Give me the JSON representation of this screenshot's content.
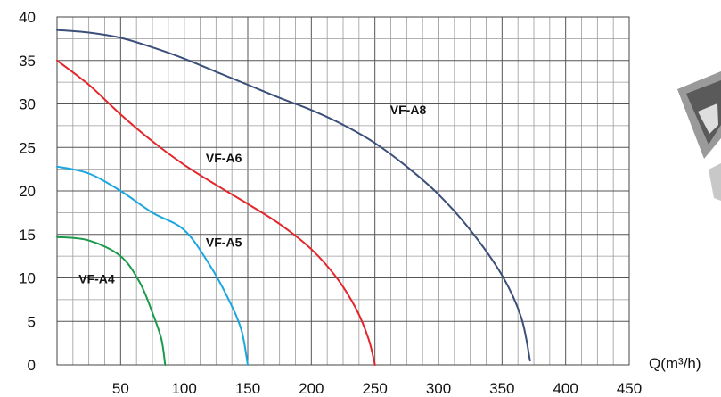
{
  "chart_data": {
    "type": "line",
    "title": "",
    "xlabel": "Q(m³/h)",
    "ylabel": "",
    "xlim": [
      0,
      450
    ],
    "ylim": [
      0,
      40
    ],
    "x_ticks": [
      "50",
      "100",
      "150",
      "200",
      "250",
      "300",
      "350",
      "400",
      "450"
    ],
    "y_ticks": [
      "0",
      "5",
      "10",
      "15",
      "20",
      "25",
      "30",
      "35",
      "40"
    ],
    "grid": true,
    "series": [
      {
        "name": "VF-A8",
        "color": "#3b4f7a",
        "label_at": [
          262,
          28.8
        ],
        "x": [
          0,
          25,
          50,
          75,
          100,
          125,
          150,
          175,
          200,
          225,
          250,
          275,
          300,
          325,
          350,
          365,
          372
        ],
        "y": [
          38.5,
          38.2,
          37.6,
          36.5,
          35.2,
          33.7,
          32.2,
          30.7,
          29.3,
          27.6,
          25.5,
          22.8,
          19.6,
          15.5,
          10.3,
          5.5,
          0.5
        ]
      },
      {
        "name": "VF-A6",
        "color": "#e3262b",
        "label_at": [
          117,
          23.3
        ],
        "x": [
          0,
          25,
          50,
          75,
          100,
          125,
          150,
          175,
          200,
          220,
          235,
          245,
          250
        ],
        "y": [
          35,
          32.2,
          28.8,
          25.7,
          23.0,
          20.7,
          18.5,
          16.2,
          13.3,
          10.0,
          6.5,
          3.0,
          0
        ]
      },
      {
        "name": "VF-A5",
        "color": "#1aa7e0",
        "label_at": [
          117,
          13.6
        ],
        "x": [
          0,
          25,
          50,
          75,
          100,
          120,
          135,
          145,
          150
        ],
        "y": [
          22.8,
          22.0,
          20.0,
          17.5,
          15.5,
          11.5,
          7.5,
          4.0,
          0
        ]
      },
      {
        "name": "VF-A4",
        "color": "#1a9a4a",
        "label_at": [
          17,
          9.4
        ],
        "x": [
          0,
          25,
          50,
          65,
          75,
          82,
          85
        ],
        "y": [
          14.7,
          14.3,
          12.5,
          9.5,
          6.0,
          3.0,
          0
        ]
      }
    ]
  }
}
